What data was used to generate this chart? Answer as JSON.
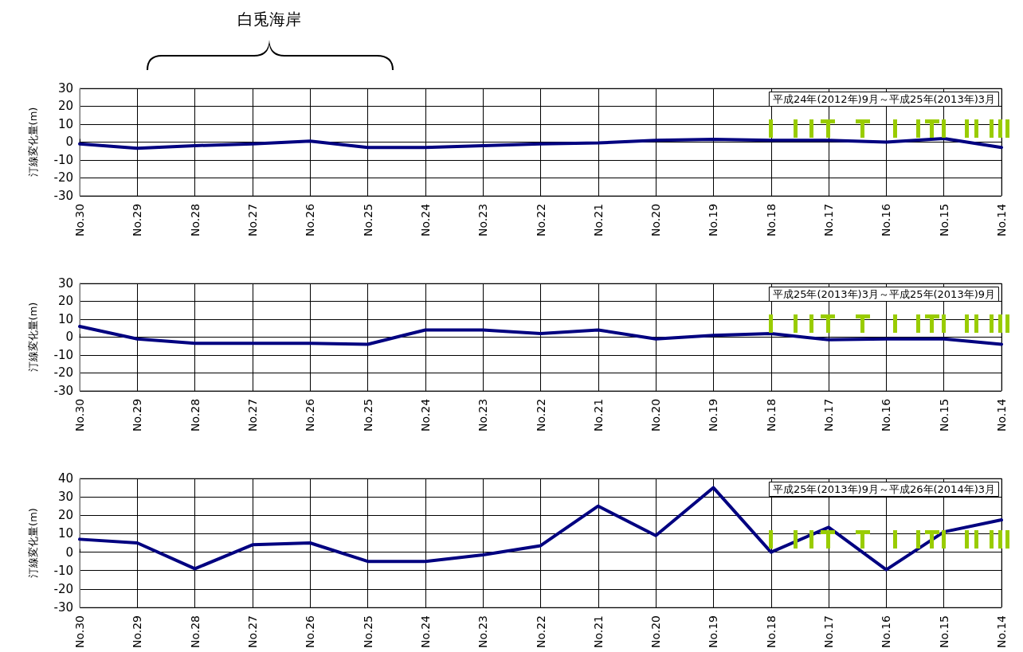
{
  "chart_data": [
    {
      "type": "line",
      "title": "平成24年(2012年)9月～平成25年(2013年)3月",
      "ylabel": "汀線変化量(m)",
      "annotations": [
        "白兎海岸"
      ],
      "categories": [
        "No.30",
        "No.29",
        "No.28",
        "No.27",
        "No.26",
        "No.25",
        "No.24",
        "No.23",
        "No.22",
        "No.21",
        "No.20",
        "No.19",
        "No.18",
        "No.17",
        "No.16",
        "No.15",
        "No.14"
      ],
      "color": "#000080",
      "values": [
        -1,
        -3.5,
        -2,
        -1,
        0.5,
        -3,
        -3,
        -2,
        -1,
        -0.5,
        1,
        1.5,
        1,
        1,
        0,
        2,
        -3
      ],
      "ylim": [
        -30,
        30
      ],
      "yticks": [
        -30,
        -20,
        -10,
        0,
        10,
        20,
        30
      ],
      "grid": true,
      "marker": "none",
      "line_style": "solid"
    },
    {
      "type": "line",
      "title": "平成25年(2013年)3月～平成25年(2013年)9月",
      "ylabel": "汀線変化量(m)",
      "categories": [
        "No.30",
        "No.29",
        "No.28",
        "No.27",
        "No.26",
        "No.25",
        "No.24",
        "No.23",
        "No.22",
        "No.21",
        "No.20",
        "No.19",
        "No.18",
        "No.17",
        "No.16",
        "No.15",
        "No.14"
      ],
      "color": "#000080",
      "values": [
        6,
        -1,
        -3.5,
        -3.5,
        -3.5,
        -4,
        4,
        4,
        2,
        4,
        -1,
        1,
        2,
        -1.5,
        -1,
        -1,
        -4
      ],
      "ylim": [
        -30,
        30
      ],
      "yticks": [
        -30,
        -20,
        -10,
        0,
        10,
        20,
        30
      ],
      "grid": true,
      "marker": "none",
      "line_style": "solid"
    },
    {
      "type": "line",
      "title": "平成25年(2013年)9月～平成26年(2014年)3月",
      "ylabel": "汀線変化量(m)",
      "categories": [
        "No.30",
        "No.29",
        "No.28",
        "No.27",
        "No.26",
        "No.25",
        "No.24",
        "No.23",
        "No.22",
        "No.21",
        "No.20",
        "No.19",
        "No.18",
        "No.17",
        "No.16",
        "No.15",
        "No.14"
      ],
      "color": "#000080",
      "values": [
        7,
        5,
        -9,
        4,
        5,
        -5,
        -5,
        -1.5,
        3.5,
        25,
        9,
        35,
        0,
        13.5,
        -9.5,
        11,
        17.5
      ],
      "ylim": [
        -30,
        40
      ],
      "yticks": [
        -30,
        -20,
        -10,
        0,
        10,
        20,
        30,
        40
      ],
      "grid": true,
      "marker": "none",
      "line_style": "solid"
    }
  ]
}
